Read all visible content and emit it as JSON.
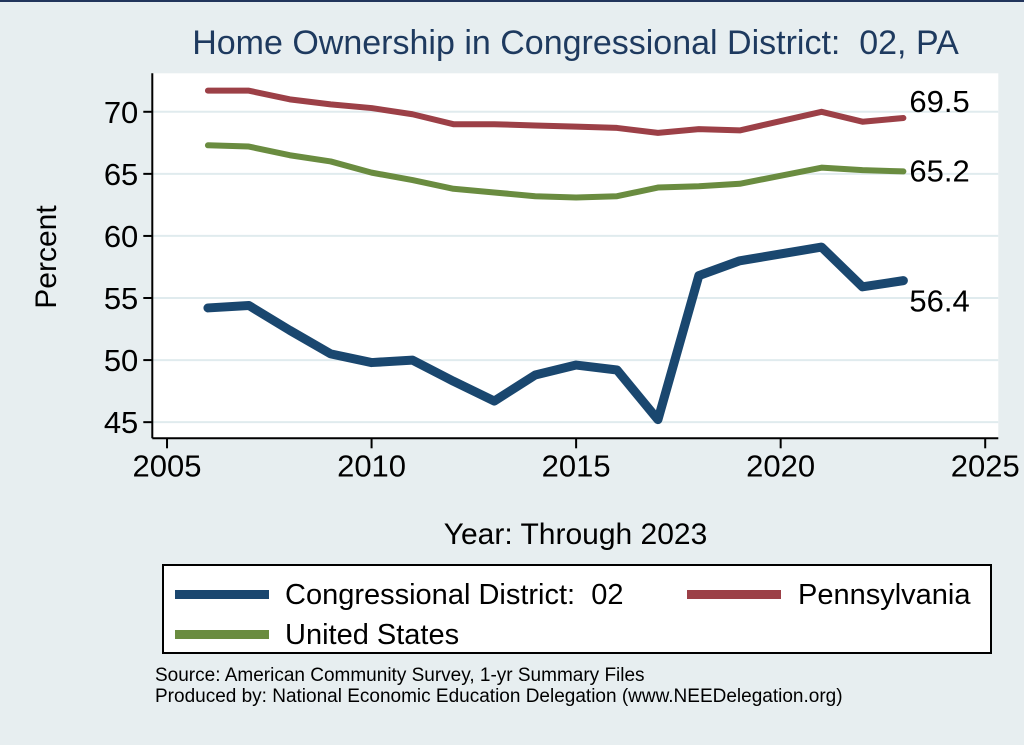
{
  "page": {
    "background_color": "#e7eef0",
    "top_border_color": "#22355c"
  },
  "chart_data": {
    "type": "line",
    "title": "Home Ownership in Congressional District:  02, PA",
    "title_color": "#1e3a5f",
    "xlabel": "Year: Through 2023",
    "ylabel": "Percent",
    "xlim": [
      2004.64,
      2025.32
    ],
    "ylim": [
      43.7,
      73.1
    ],
    "xticks": [
      "2005",
      "2010",
      "2015",
      "2020",
      "2025"
    ],
    "yticks": [
      "45",
      "50",
      "55",
      "60",
      "65",
      "70"
    ],
    "grid": "horizontal gridlines on white plot area",
    "gridline_color": "#e0ebee",
    "plot_background": "#ffffff",
    "legend_position": "bottom",
    "x_years": [
      2006,
      2007,
      2008,
      2009,
      2010,
      2011,
      2012,
      2013,
      2014,
      2015,
      2016,
      2017,
      2018,
      2019,
      2021,
      2022,
      2023
    ],
    "series": [
      {
        "name": "Congressional District:  02",
        "color": "#1a476f",
        "end_label": "56.4",
        "values": [
          54.2,
          54.4,
          52.4,
          50.5,
          49.8,
          50.0,
          48.3,
          46.7,
          48.8,
          49.6,
          49.2,
          45.2,
          56.8,
          58.0,
          59.1,
          55.9,
          56.4
        ]
      },
      {
        "name": "Pennsylvania",
        "color": "#9c4047",
        "end_label": "69.5",
        "values": [
          71.7,
          71.7,
          71.0,
          70.6,
          70.3,
          69.8,
          69.0,
          69.0,
          68.9,
          68.8,
          68.7,
          68.3,
          68.6,
          68.5,
          70.0,
          69.2,
          69.5
        ]
      },
      {
        "name": "United States",
        "color": "#6a8c40",
        "end_label": "65.2",
        "values": [
          67.3,
          67.2,
          66.5,
          66.0,
          65.1,
          64.5,
          63.8,
          63.5,
          63.2,
          63.1,
          63.2,
          63.9,
          64.0,
          64.2,
          65.5,
          65.3,
          65.2
        ]
      }
    ]
  },
  "footer": {
    "source": "Source: American Community Survey, 1-yr Summary Files",
    "produced_by": "Produced by: National Economic Education Delegation (www.NEEDelegation.org)"
  }
}
